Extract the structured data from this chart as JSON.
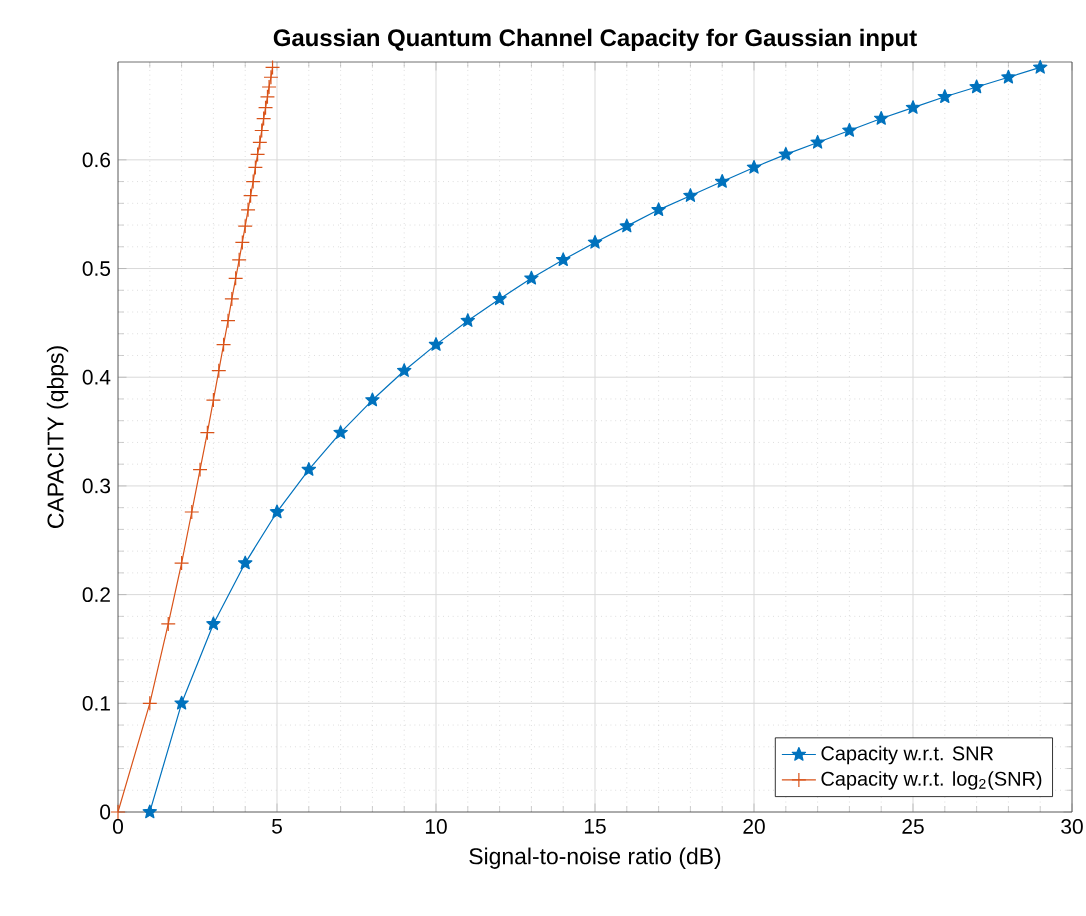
{
  "chart_data": {
    "type": "line",
    "title": "Gaussian Quantum Channel Capacity for Gaussian input",
    "xlabel": "Signal-to-noise ratio (dB)",
    "ylabel": "CAPACITY (qbps)",
    "xlim": [
      0,
      30
    ],
    "ylim": [
      0,
      0.69
    ],
    "xticks": [
      0,
      5,
      10,
      15,
      20,
      25,
      30
    ],
    "yticks": [
      0,
      0.1,
      0.2,
      0.3,
      0.4,
      0.5,
      0.6
    ],
    "grid": true,
    "legend": "bottom right",
    "line_style": "solid",
    "series": [
      {
        "name": "Capacity w.r.t. SNR",
        "color": "#0072bd",
        "marker": "star",
        "x": [
          1,
          2,
          3,
          4,
          5,
          6,
          7,
          8,
          9,
          10,
          11,
          12,
          13,
          14,
          15,
          16,
          17,
          18,
          19,
          20,
          21,
          22,
          23,
          24,
          25,
          26,
          27,
          28,
          29
        ],
        "values": [
          0,
          0.1,
          0.173,
          0.229,
          0.276,
          0.315,
          0.349,
          0.379,
          0.406,
          0.43,
          0.452,
          0.472,
          0.491,
          0.508,
          0.524,
          0.539,
          0.554,
          0.567,
          0.58,
          0.593,
          0.605,
          0.616,
          0.627,
          0.638,
          0.648,
          0.658,
          0.667,
          0.676,
          0.685
        ]
      },
      {
        "name": "Capacity w.r.t. log$_{2}$(SNR)",
        "color": "#d95319",
        "marker": "cross",
        "x": [
          0,
          1,
          1.58,
          2,
          2.32,
          2.58,
          2.81,
          3,
          3.17,
          3.32,
          3.46,
          3.58,
          3.7,
          3.81,
          3.91,
          4,
          4.09,
          4.17,
          4.25,
          4.32,
          4.39,
          4.46,
          4.52,
          4.58,
          4.64,
          4.7,
          4.75,
          4.81,
          4.86
        ],
        "values": [
          0,
          0.1,
          0.173,
          0.229,
          0.276,
          0.315,
          0.349,
          0.379,
          0.406,
          0.43,
          0.452,
          0.472,
          0.491,
          0.508,
          0.524,
          0.539,
          0.554,
          0.567,
          0.58,
          0.593,
          0.605,
          0.616,
          0.627,
          0.638,
          0.648,
          0.658,
          0.667,
          0.676,
          0.685
        ]
      }
    ]
  }
}
